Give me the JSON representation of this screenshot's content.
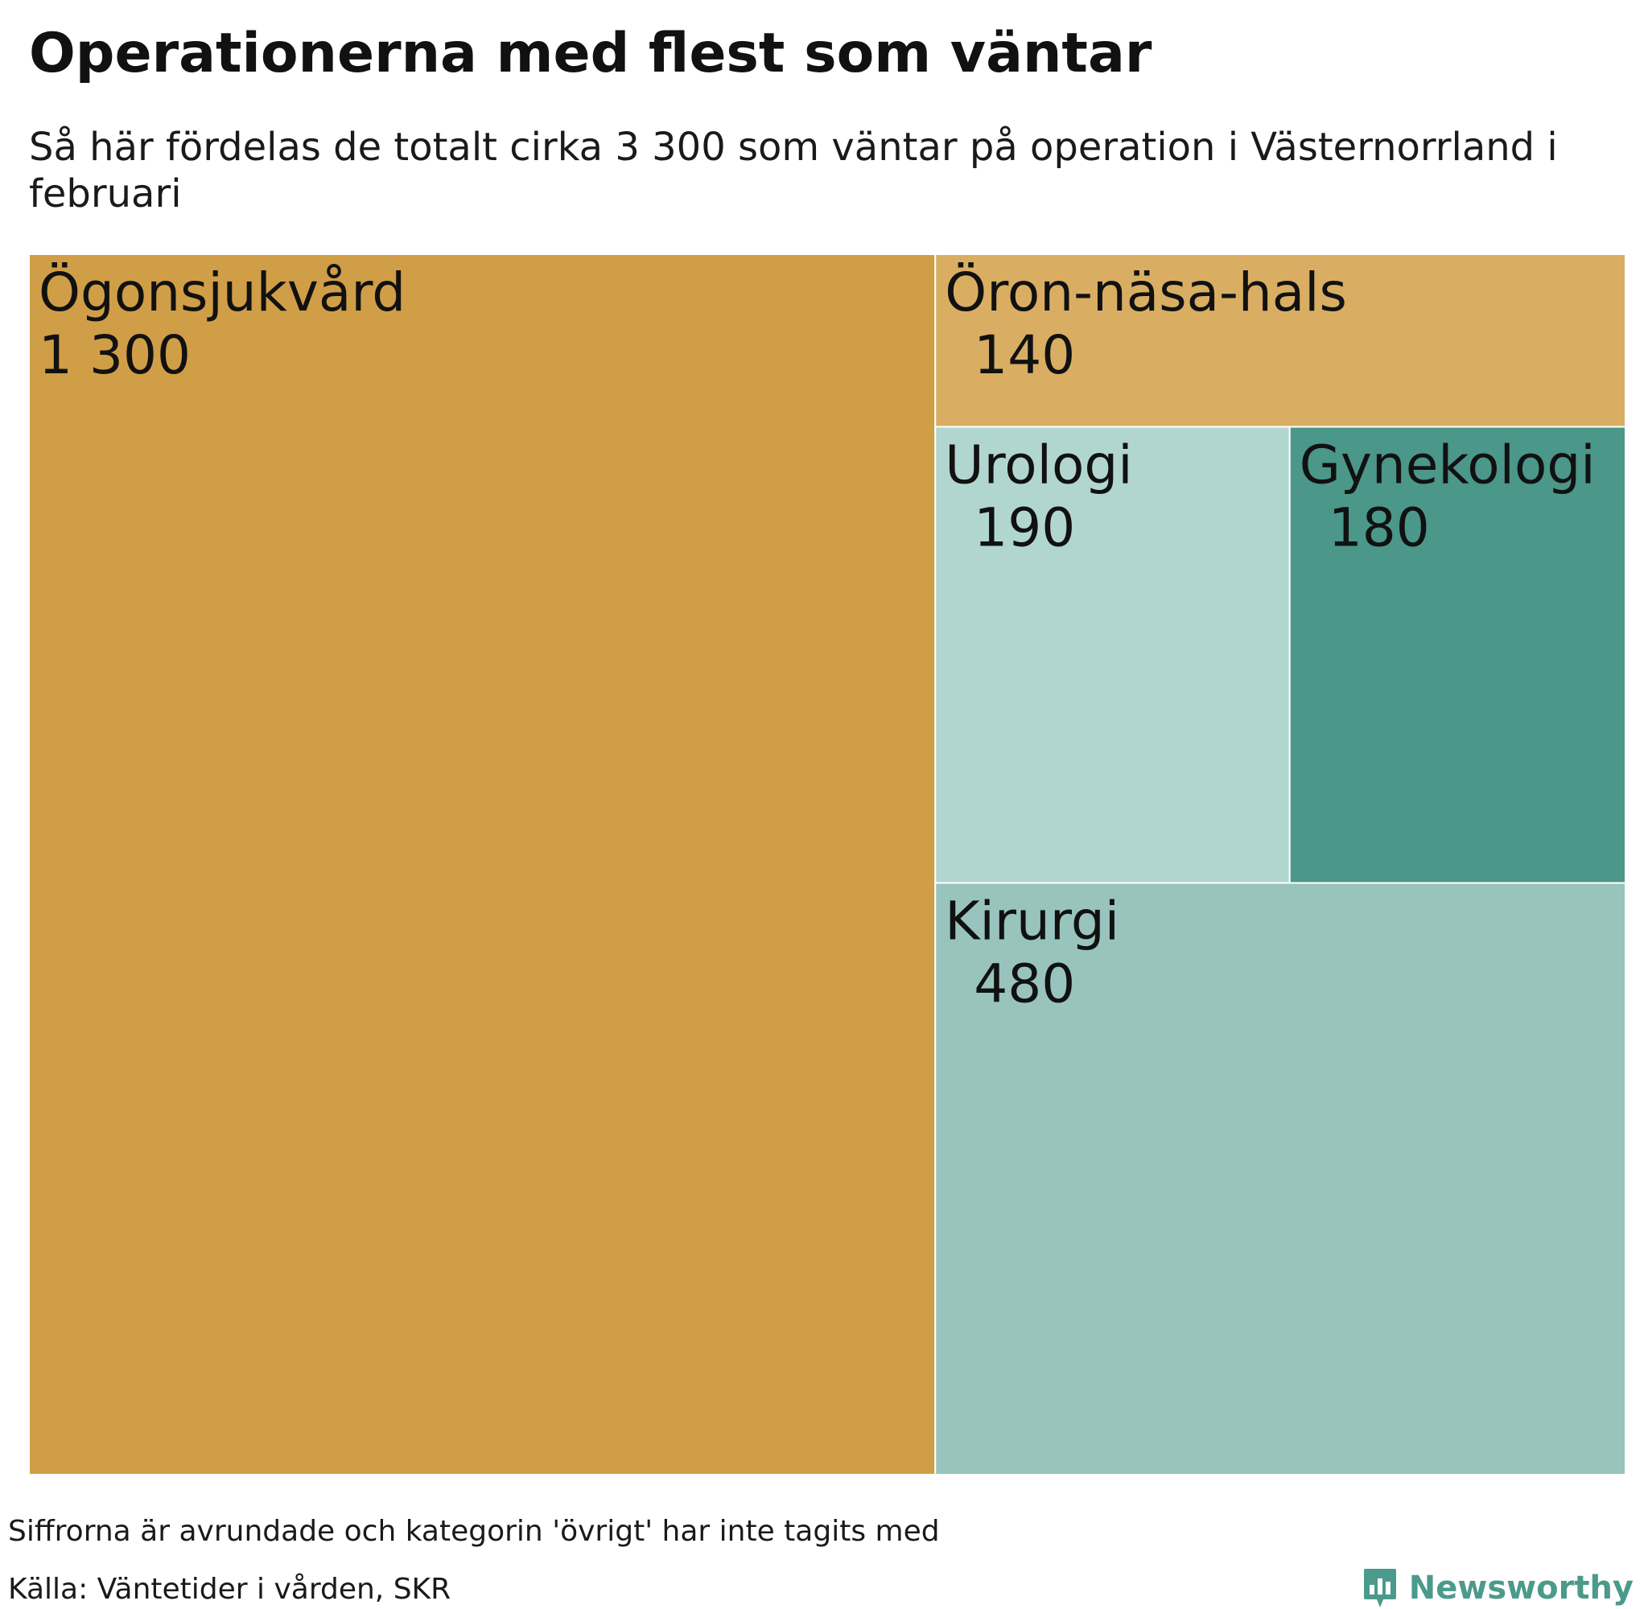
{
  "header": {
    "title": "Operationerna med flest som väntar",
    "subtitle": "Så här fördelas de totalt cirka 3 300 som väntar på operation i Västernorrland i februari"
  },
  "chart_data": {
    "type": "treemap",
    "title": "Operationerna med flest som väntar",
    "subtitle": "Så här fördelas de totalt cirka 3 300 som väntar på operation i Västernorrland i februari",
    "items": [
      {
        "name": "Ögonsjukvård",
        "value": 1300,
        "label": "1 300",
        "color": "#d09e46"
      },
      {
        "name": "Öron-näsa-hals",
        "value": 140,
        "label": "140",
        "color": "#d9ae63"
      },
      {
        "name": "Urologi",
        "value": 190,
        "label": "190",
        "color": "#b1d6cf"
      },
      {
        "name": "Gynekologi",
        "value": 180,
        "label": "180",
        "color": "#4b978a"
      },
      {
        "name": "Kirurgi",
        "value": 480,
        "label": "480",
        "color": "#98c4bd"
      }
    ]
  },
  "footer": {
    "note": "Siffrorna är avrundade och kategorin 'övrigt' har inte tagits med",
    "source": "Källa: Väntetider i vården, SKR",
    "brand": "Newsworthy",
    "brand_icon": "newsworthy-logo-icon",
    "brand_color": "#4b9a8b"
  }
}
